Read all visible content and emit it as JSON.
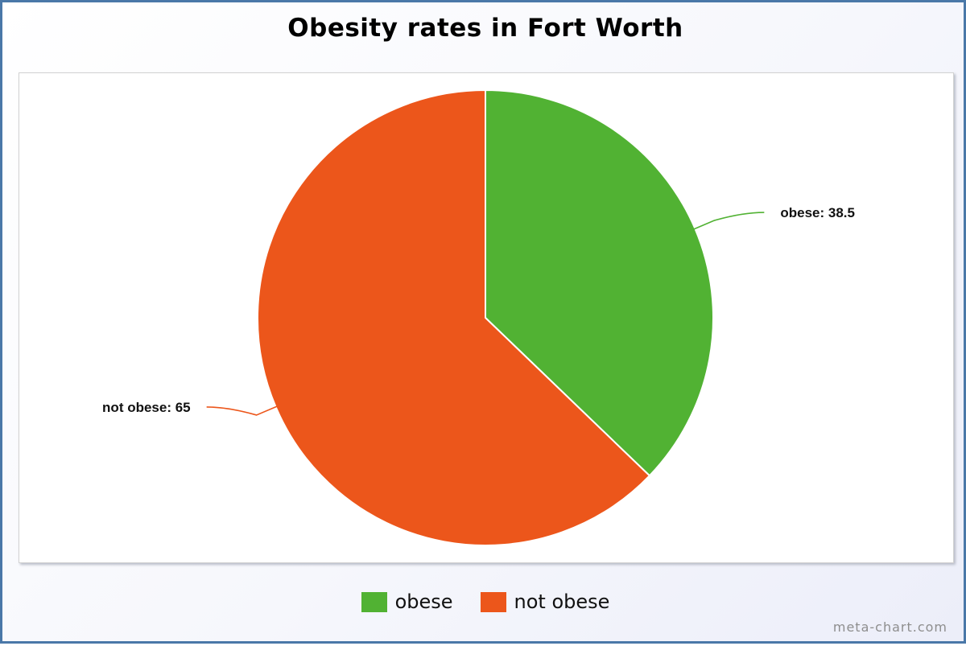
{
  "chart_data": {
    "type": "pie",
    "title": "Obesity rates in Fort Worth",
    "slices": [
      {
        "label": "obese",
        "value": 38.5,
        "color": "#51b233",
        "data_label": "obese: 38.5"
      },
      {
        "label": "not obese",
        "value": 65,
        "color": "#ec561b",
        "data_label": "not obese: 65"
      }
    ],
    "legend_position": "bottom"
  },
  "watermark": "meta-chart.com"
}
